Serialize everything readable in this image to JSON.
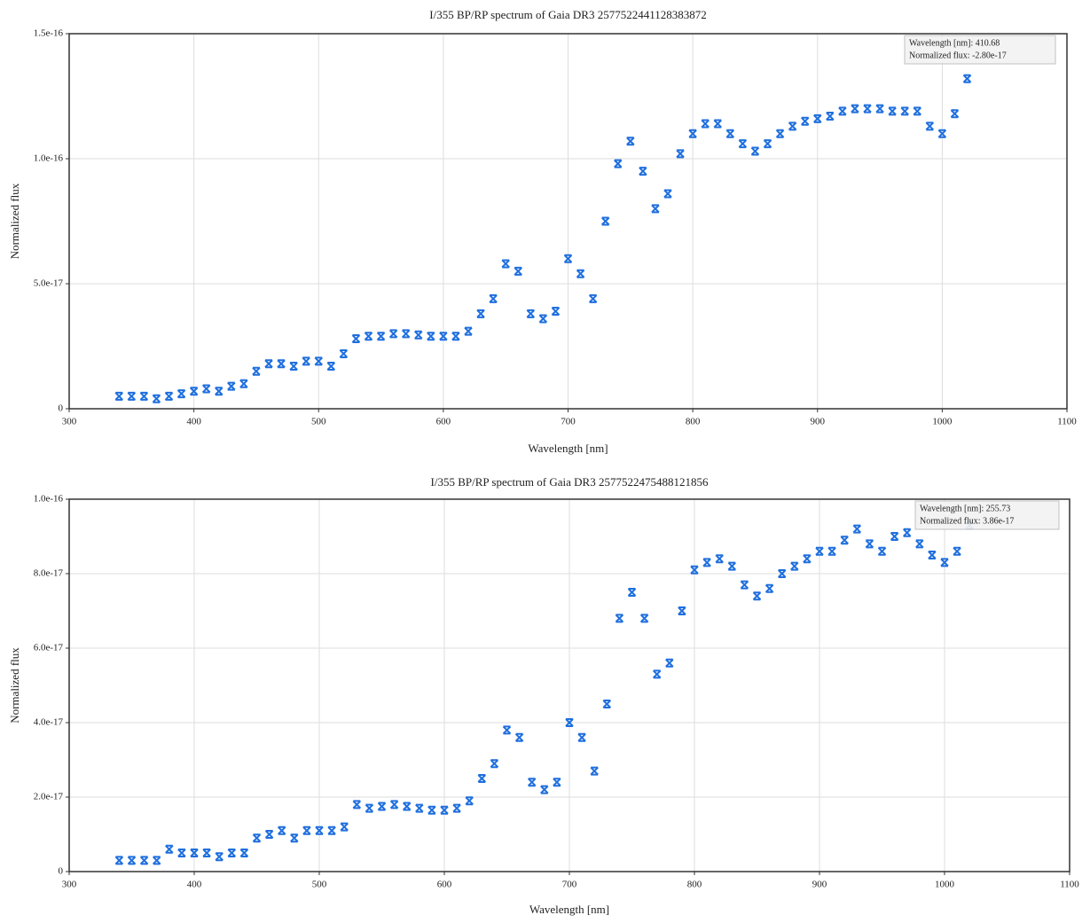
{
  "chart_data": [
    {
      "type": "scatter",
      "title": "I/355 BP/RP spectrum of Gaia DR3 2577522441128383872",
      "x_label": "Wavelength [nm]",
      "y_label": "Normalized flux",
      "annotation": [
        "Wavelength [nm]: 410.68",
        "Normalized flux: -2.80e-17"
      ],
      "xlim": [
        300,
        1100
      ],
      "xticks": [
        300,
        400,
        500,
        600,
        700,
        800,
        900,
        1000,
        1100
      ],
      "ylim": [
        0,
        1.5e-16
      ],
      "yticks": [
        0,
        {
          "value": 5e-17,
          "label": "5.0e-17"
        },
        {
          "value": 1e-16,
          "label": "1.0e-16"
        },
        {
          "value": 1.5e-16,
          "label": "1.5e-16"
        }
      ],
      "grid": true,
      "color": "#1f6fde",
      "x": [
        340,
        350,
        360,
        370,
        380,
        390,
        400,
        410,
        420,
        430,
        440,
        450,
        460,
        470,
        480,
        490,
        500,
        510,
        520,
        530,
        540,
        550,
        560,
        570,
        580,
        590,
        600,
        610,
        620,
        630,
        640,
        650,
        660,
        670,
        680,
        690,
        700,
        710,
        720,
        730,
        740,
        750,
        760,
        770,
        780,
        790,
        800,
        810,
        820,
        830,
        840,
        850,
        860,
        870,
        880,
        890,
        900,
        910,
        920,
        930,
        940,
        950,
        960,
        970,
        980,
        990,
        1000,
        1010,
        1020
      ],
      "values": [
        5e-18,
        5e-18,
        5e-18,
        4e-18,
        5e-18,
        6e-18,
        7e-18,
        8e-18,
        7e-18,
        9e-18,
        1e-17,
        1.5e-17,
        1.8e-17,
        1.8e-17,
        1.7e-17,
        1.9e-17,
        1.9e-17,
        1.7e-17,
        2.2e-17,
        2.8e-17,
        2.9e-17,
        2.9e-17,
        3e-17,
        3e-17,
        2.95e-17,
        2.9e-17,
        2.9e-17,
        2.9e-17,
        3.1e-17,
        3.8e-17,
        4.4e-17,
        5.8e-17,
        5.5e-17,
        3.8e-17,
        3.6e-17,
        3.9e-17,
        6e-17,
        5.4e-17,
        4.4e-17,
        7.5e-17,
        9.8e-17,
        1.07e-16,
        9.5e-17,
        8e-17,
        8.6e-17,
        1.02e-16,
        1.1e-16,
        1.14e-16,
        1.14e-16,
        1.1e-16,
        1.06e-16,
        1.03e-16,
        1.06e-16,
        1.1e-16,
        1.13e-16,
        1.15e-16,
        1.16e-16,
        1.17e-16,
        1.19e-16,
        1.2e-16,
        1.2e-16,
        1.2e-16,
        1.19e-16,
        1.19e-16,
        1.19e-16,
        1.13e-16,
        1.1e-16,
        1.18e-16,
        1.32e-16
      ]
    },
    {
      "type": "scatter",
      "title": "I/355 BP/RP spectrum of Gaia DR3 2577522475488121856",
      "x_label": "Wavelength [nm]",
      "y_label": "Normalized flux",
      "annotation": [
        "Wavelength [nm]: 255.73",
        "Normalized flux: 3.86e-17"
      ],
      "xlim": [
        300,
        1100
      ],
      "xticks": [
        300,
        400,
        500,
        600,
        700,
        800,
        900,
        1000,
        1100
      ],
      "ylim": [
        0,
        1e-16
      ],
      "yticks": [
        0,
        {
          "value": 2e-17,
          "label": "2.0e-17"
        },
        {
          "value": 4e-17,
          "label": "4.0e-17"
        },
        {
          "value": 6e-17,
          "label": "6.0e-17"
        },
        {
          "value": 8e-17,
          "label": "8.0e-17"
        },
        {
          "value": 1e-16,
          "label": "1.0e-16"
        }
      ],
      "grid": true,
      "color": "#1f6fde",
      "x": [
        340,
        350,
        360,
        370,
        380,
        390,
        400,
        410,
        420,
        430,
        440,
        450,
        460,
        470,
        480,
        490,
        500,
        510,
        520,
        530,
        540,
        550,
        560,
        570,
        580,
        590,
        600,
        610,
        620,
        630,
        640,
        650,
        660,
        670,
        680,
        690,
        700,
        710,
        720,
        730,
        740,
        750,
        760,
        770,
        780,
        790,
        800,
        810,
        820,
        830,
        840,
        850,
        860,
        870,
        880,
        890,
        900,
        910,
        920,
        930,
        940,
        950,
        960,
        970,
        980,
        990,
        1000,
        1010,
        1020
      ],
      "values": [
        3e-18,
        3e-18,
        3e-18,
        3e-18,
        6e-18,
        5e-18,
        5e-18,
        5e-18,
        4e-18,
        5e-18,
        5e-18,
        9e-18,
        1e-17,
        1.1e-17,
        9e-18,
        1.1e-17,
        1.1e-17,
        1.1e-17,
        1.2e-17,
        1.8e-17,
        1.7e-17,
        1.75e-17,
        1.8e-17,
        1.75e-17,
        1.7e-17,
        1.65e-17,
        1.65e-17,
        1.7e-17,
        1.9e-17,
        2.5e-17,
        2.9e-17,
        3.8e-17,
        3.6e-17,
        2.4e-17,
        2.2e-17,
        2.4e-17,
        4e-17,
        3.6e-17,
        2.7e-17,
        4.5e-17,
        6.8e-17,
        7.5e-17,
        6.8e-17,
        5.3e-17,
        5.6e-17,
        7e-17,
        8.1e-17,
        8.3e-17,
        8.4e-17,
        8.2e-17,
        7.7e-17,
        7.4e-17,
        7.6e-17,
        8e-17,
        8.2e-17,
        8.4e-17,
        8.6e-17,
        8.6e-17,
        8.9e-17,
        9.2e-17,
        8.8e-17,
        8.6e-17,
        9e-17,
        9.1e-17,
        8.8e-17,
        8.5e-17,
        8.3e-17,
        8.6e-17,
        9.3e-17
      ]
    }
  ]
}
